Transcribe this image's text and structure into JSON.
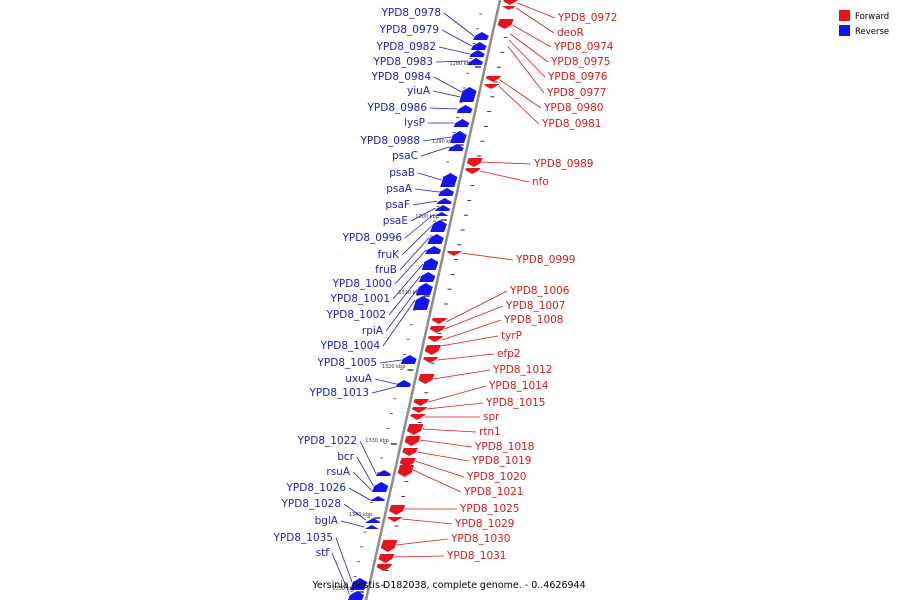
{
  "caption": "Yersinia pestis D182038, complete genome. - 0..4626944",
  "legend": [
    {
      "label": "Forward",
      "color": "#e8141c"
    },
    {
      "label": "Reverse",
      "color": "#1414ee"
    }
  ],
  "colors": {
    "forward": "#e8141c",
    "reverse": "#1414ee",
    "forward_label": "#d61818",
    "reverse_label": "#1a1acc",
    "backbone": "#8c8c8c"
  },
  "ticks": [
    "1280 kbp",
    "1290 kbp",
    "1300 kbp",
    "1310 kbp",
    "1320 kbp",
    "1330 kbp",
    "1340 kbp",
    "1350 kbp"
  ],
  "forward_genes": [
    "YPD8_0972",
    "deoR",
    "YPD8_0974",
    "YPD8_0975",
    "YPD8_0976",
    "YPD8_0977",
    "YPD8_0980",
    "YPD8_0981",
    "YPD8_0989",
    "nfo",
    "YPD8_0999",
    "YPD8_1006",
    "YPD8_1007",
    "YPD8_1008",
    "tyrP",
    "efp2",
    "YPD8_1012",
    "YPD8_1014",
    "YPD8_1015",
    "spr",
    "rtn1",
    "YPD8_1018",
    "YPD8_1019",
    "YPD8_1020",
    "YPD8_1021",
    "YPD8_1025",
    "YPD8_1029",
    "YPD8_1030",
    "YPD8_1031"
  ],
  "reverse_genes": [
    "YPD8_0978",
    "YPD8_0979",
    "YPD8_0982",
    "YPD8_0983",
    "YPD8_0984",
    "yiuA",
    "YPD8_0986",
    "lysP",
    "YPD8_0988",
    "psaC",
    "psaB",
    "psaA",
    "psaF",
    "psaE",
    "YPD8_0996",
    "fruK",
    "fruB",
    "YPD8_1000",
    "YPD8_1001",
    "YPD8_1002",
    "rpiA",
    "YPD8_1004",
    "YPD8_1005",
    "uxuA",
    "YPD8_1013",
    "YPD8_1022",
    "bcr",
    "rsuA",
    "YPD8_1026",
    "YPD8_1028",
    "bglA",
    "YPD8_1035",
    "stf"
  ]
}
